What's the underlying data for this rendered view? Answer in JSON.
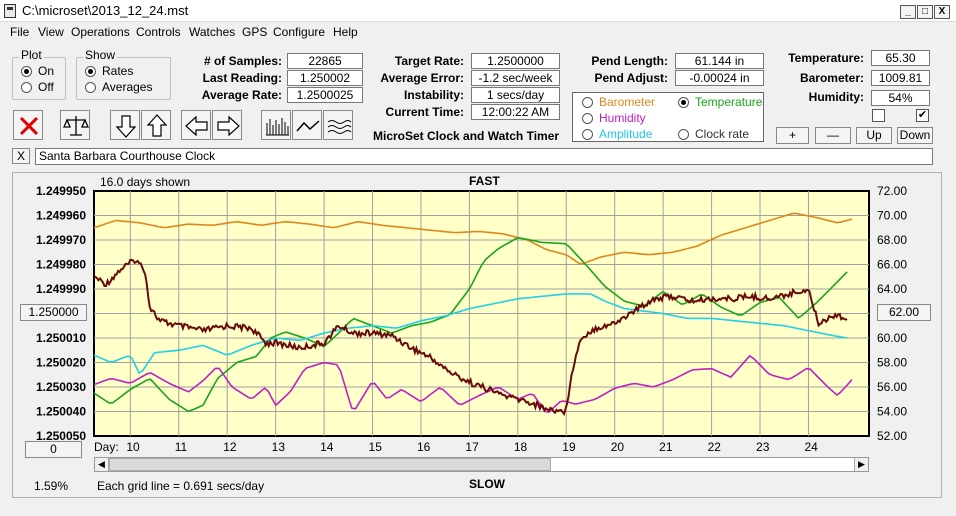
{
  "window": {
    "title": "C:\\microset\\2013_12_24.mst",
    "min": "_",
    "max": "□",
    "close": "X"
  },
  "menu": [
    "File",
    "View",
    "Operations",
    "Controls",
    "Watches",
    "GPS",
    "Configure",
    "Help"
  ],
  "plot_group": {
    "title": "Plot",
    "on": "On",
    "off": "Off",
    "selected": "On"
  },
  "show_group": {
    "title": "Show",
    "rates": "Rates",
    "averages": "Averages",
    "selected": "Rates"
  },
  "stats": {
    "samples_label": "# of Samples:",
    "samples": "22865",
    "last_label": "Last Reading:",
    "last": "1.250002",
    "avg_label": "Average Rate:",
    "avg": "1.2500025"
  },
  "rates": {
    "target_label": "Target Rate:",
    "target": "1.2500000",
    "error_label": "Average Error:",
    "error": "-1.2 sec/week",
    "instab_label": "Instability:",
    "instab": "1 secs/day",
    "time_label": "Current Time:",
    "time": "12:00:22 AM"
  },
  "pend": {
    "length_label": "Pend Length:",
    "length": "61.144 in",
    "adjust_label": "Pend Adjust:",
    "adjust": "-0.00024 in"
  },
  "env": {
    "temp_label": "Temperature:",
    "temp": "65.30",
    "baro_label": "Barometer:",
    "baro": "1009.81",
    "hum_label": "Humidity:",
    "hum": "54%"
  },
  "sensor_select": {
    "barometer": "Barometer",
    "temperature": "Temperature",
    "humidity": "Humidity",
    "amplitude": "Amplitude",
    "clockrate": "Clock rate",
    "selected": "Temperature",
    "colors": {
      "barometer": "#e0861c",
      "temperature": "#1aa51a",
      "humidity": "#c020c0",
      "amplitude": "#20d0e8",
      "clockrate": "#333333"
    }
  },
  "app_name": "MicroSet Clock and Watch Timer",
  "scale_buttons": {
    "plus": "+",
    "minus": "—",
    "up": "Up",
    "down": "Down"
  },
  "watch_name": "Santa Barbara Courthouse Clock",
  "watch_close": "X",
  "chart_header": {
    "days_shown": "16.0 days shown",
    "fast": "FAST",
    "slow": "SLOW",
    "day_label": "Day:",
    "left_value": "1.250000",
    "right_value": "62.00",
    "pos_value": "0",
    "percent": "1.59%",
    "grid_note": "Each grid line = 0.691 secs/day"
  },
  "chart_data": {
    "type": "line",
    "title": "",
    "x_label": "Day:",
    "x_range": [
      9.25,
      25.25
    ],
    "x_ticks": [
      10,
      11,
      12,
      13,
      14,
      15,
      16,
      17,
      18,
      19,
      20,
      21,
      22,
      23,
      24
    ],
    "left_axis": {
      "ticks": [
        "1.249950",
        "1.249960",
        "1.249970",
        "1.249980",
        "1.249990",
        "1.250000",
        "1.250010",
        "1.250020",
        "1.250030",
        "1.250040",
        "1.250050"
      ],
      "range": [
        1.24995,
        1.25005
      ],
      "inverted": true
    },
    "right_axis": {
      "ticks": [
        "72.00",
        "70.00",
        "68.00",
        "66.00",
        "64.00",
        "62.00",
        "60.00",
        "58.00",
        "56.00",
        "54.00",
        "52.00"
      ],
      "range": [
        52,
        72
      ]
    },
    "grid": true,
    "series": [
      {
        "name": "Barometer",
        "color": "#e0861c",
        "axis": "right",
        "x": [
          9.25,
          9.7,
          10.2,
          10.7,
          11.2,
          11.7,
          12.2,
          12.7,
          13.2,
          13.7,
          14.2,
          14.7,
          15.2,
          15.7,
          16.2,
          16.7,
          17.2,
          17.7,
          18.2,
          18.6,
          19.0,
          19.3,
          19.7,
          20.2,
          20.7,
          21.2,
          21.7,
          22.2,
          22.7,
          23.2,
          23.7,
          24.2,
          24.6,
          24.9
        ],
        "y": [
          69.0,
          69.6,
          69.4,
          69.0,
          69.3,
          69.2,
          69.5,
          69.2,
          69.5,
          69.3,
          69.0,
          69.5,
          69.2,
          69.0,
          68.8,
          68.6,
          68.7,
          68.5,
          68.0,
          67.2,
          66.8,
          66.0,
          66.6,
          67.0,
          66.8,
          67.0,
          67.5,
          68.4,
          69.0,
          69.6,
          70.2,
          69.8,
          69.4,
          69.7
        ]
      },
      {
        "name": "Temperature",
        "color": "#1aa51a",
        "axis": "right",
        "x": [
          9.25,
          9.6,
          10.0,
          10.4,
          10.8,
          11.2,
          11.5,
          11.8,
          12.2,
          12.6,
          12.9,
          13.2,
          13.6,
          14.0,
          14.3,
          14.6,
          15.0,
          15.4,
          15.8,
          16.2,
          16.6,
          17.0,
          17.3,
          17.6,
          18.0,
          18.5,
          19.0,
          19.4,
          19.8,
          20.2,
          20.6,
          21.0,
          21.4,
          21.8,
          22.2,
          22.6,
          23.0,
          23.4,
          23.8,
          24.2,
          24.5,
          24.8
        ],
        "y": [
          55.5,
          54.6,
          55.8,
          56.7,
          55.0,
          54.0,
          54.5,
          56.7,
          58.0,
          58.5,
          60.0,
          60.5,
          60.0,
          59.3,
          60.4,
          61.6,
          61.0,
          60.4,
          61.0,
          61.3,
          61.9,
          64.0,
          66.3,
          67.3,
          68.2,
          67.8,
          67.7,
          66.0,
          64.2,
          63.0,
          62.6,
          63.8,
          62.7,
          63.6,
          62.5,
          61.8,
          62.9,
          63.3,
          61.6,
          63.0,
          64.2,
          65.4
        ]
      },
      {
        "name": "Humidity",
        "color": "#c020c0",
        "axis": "right",
        "x": [
          9.25,
          9.6,
          10.0,
          10.4,
          10.8,
          11.2,
          11.5,
          11.8,
          12.1,
          12.5,
          12.8,
          13.0,
          13.3,
          13.6,
          14.0,
          14.3,
          14.6,
          15.0,
          15.3,
          15.6,
          16.0,
          16.4,
          16.8,
          17.2,
          17.6,
          18.0,
          18.3,
          18.6,
          18.9,
          19.2,
          19.6,
          20.0,
          20.4,
          20.8,
          21.2,
          21.6,
          22.0,
          22.4,
          22.8,
          23.2,
          23.6,
          24.0,
          24.4,
          24.6,
          24.9
        ],
        "y": [
          56.2,
          56.7,
          56.3,
          57.2,
          56.3,
          55.6,
          56.5,
          57.7,
          56.0,
          55.0,
          56.0,
          54.5,
          55.6,
          57.5,
          58.0,
          57.8,
          53.9,
          56.5,
          55.0,
          55.8,
          54.8,
          56.0,
          54.5,
          55.3,
          56.0,
          55.0,
          55.5,
          53.8,
          54.9,
          54.6,
          55.0,
          55.9,
          56.3,
          56.0,
          56.6,
          57.4,
          57.5,
          56.8,
          58.6,
          57.0,
          56.6,
          57.6,
          56.0,
          55.3,
          56.6
        ]
      },
      {
        "name": "Amplitude",
        "color": "#20d0e8",
        "axis": "left",
        "x": [
          9.25,
          9.6,
          10.0,
          10.2,
          10.5,
          11.0,
          11.5,
          12.0,
          12.5,
          13.0,
          13.5,
          14.0,
          14.5,
          15.0,
          15.5,
          16.0,
          16.5,
          17.0,
          17.5,
          18.0,
          18.5,
          19.0,
          19.5,
          19.8,
          20.2,
          20.6,
          21.0,
          21.5,
          22.0,
          22.5,
          23.0,
          23.5,
          24.0,
          24.5,
          24.8
        ],
        "y": [
          1.250017,
          1.25002,
          1.250017,
          1.250025,
          1.250016,
          1.250015,
          1.250013,
          1.250017,
          1.250013,
          1.25001,
          1.250011,
          1.250008,
          1.250006,
          1.250005,
          1.250006,
          1.250003,
          1.250001,
          1.249998,
          1.249996,
          1.249994,
          1.249993,
          1.249992,
          1.249992,
          1.249995,
          1.249998,
          1.249999,
          1.25,
          1.250002,
          1.250002,
          1.250003,
          1.250004,
          1.250005,
          1.250007,
          1.250009,
          1.25001
        ]
      },
      {
        "name": "Clock rate",
        "color": "#6a0a0a",
        "axis": "left",
        "x": [
          9.25,
          9.5,
          9.8,
          10.1,
          10.3,
          10.4,
          10.6,
          11.0,
          11.5,
          12.0,
          12.5,
          12.8,
          13.0,
          13.5,
          14.0,
          14.3,
          14.6,
          15.0,
          15.4,
          15.8,
          16.2,
          16.6,
          17.0,
          17.4,
          17.8,
          18.2,
          18.6,
          19.0,
          19.1,
          19.3,
          19.6,
          20.0,
          20.4,
          20.8,
          21.2,
          21.6,
          22.0,
          22.4,
          22.8,
          23.2,
          23.6,
          24.0,
          24.2,
          24.4,
          24.6,
          24.8
        ],
        "y": [
          1.249985,
          1.249988,
          1.249982,
          1.249978,
          1.249982,
          1.249997,
          1.250003,
          1.250005,
          1.250007,
          1.250005,
          1.250006,
          1.250012,
          1.250012,
          1.250014,
          1.250012,
          1.250005,
          1.250008,
          1.250008,
          1.250009,
          1.250014,
          1.250018,
          1.250024,
          1.250028,
          1.250031,
          1.250034,
          1.250036,
          1.250039,
          1.25004,
          1.250025,
          1.25001,
          1.250006,
          1.250004,
          1.249999,
          1.249994,
          1.249993,
          1.249995,
          1.249994,
          1.249994,
          1.249993,
          1.249994,
          1.249992,
          1.24999,
          1.250004,
          1.250002,
          1.25,
          1.250003
        ]
      }
    ]
  }
}
